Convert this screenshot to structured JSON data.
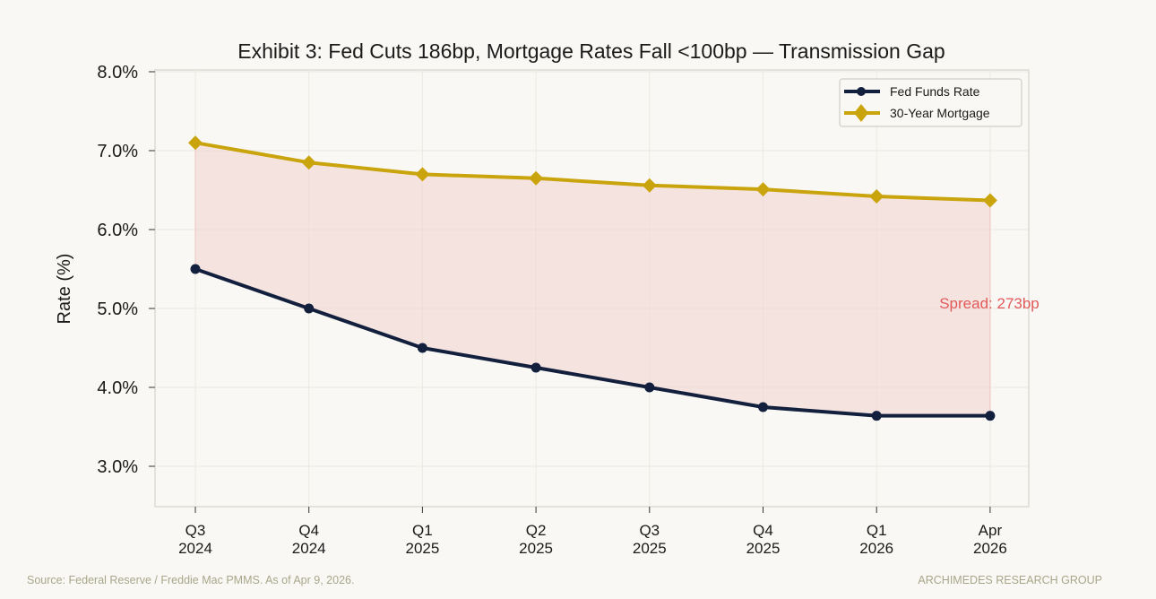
{
  "chart_data": {
    "type": "line",
    "title": "Exhibit 3: Fed Cuts 186bp, Mortgage Rates Fall <100bp — Transmission Gap",
    "xlabel": "",
    "ylabel": "Rate (%)",
    "categories": [
      [
        "Q3",
        "2024"
      ],
      [
        "Q4",
        "2024"
      ],
      [
        "Q1",
        "2025"
      ],
      [
        "Q2",
        "2025"
      ],
      [
        "Q3",
        "2025"
      ],
      [
        "Q4",
        "2025"
      ],
      [
        "Q1",
        "2026"
      ],
      [
        "Apr",
        "2026"
      ]
    ],
    "ylim": [
      2.5,
      8.0
    ],
    "yticks": [
      3.0,
      4.0,
      5.0,
      6.0,
      7.0,
      8.0
    ],
    "ytick_labels": [
      "3.0%",
      "4.0%",
      "5.0%",
      "6.0%",
      "7.0%",
      "8.0%"
    ],
    "grid": true,
    "legend_position": "top-right",
    "series": [
      {
        "name": "Fed Funds Rate",
        "color": "#13203d",
        "marker": "circle",
        "values": [
          5.5,
          5.0,
          4.5,
          4.25,
          4.0,
          3.75,
          3.64,
          3.64
        ]
      },
      {
        "name": "30-Year Mortgage",
        "color": "#c9a40c",
        "marker": "diamond",
        "values": [
          7.1,
          6.85,
          6.7,
          6.65,
          6.56,
          6.51,
          6.42,
          6.37
        ]
      }
    ],
    "fill_between_color": "#f2d5d2",
    "annotation": {
      "text": "Spread: 273bp",
      "color": "#e05a5a"
    }
  },
  "footer": {
    "source": "Source: Federal Reserve / Freddie Mac PMMS. As of Apr 9, 2026.",
    "brand": "ARCHIMEDES RESEARCH GROUP"
  }
}
